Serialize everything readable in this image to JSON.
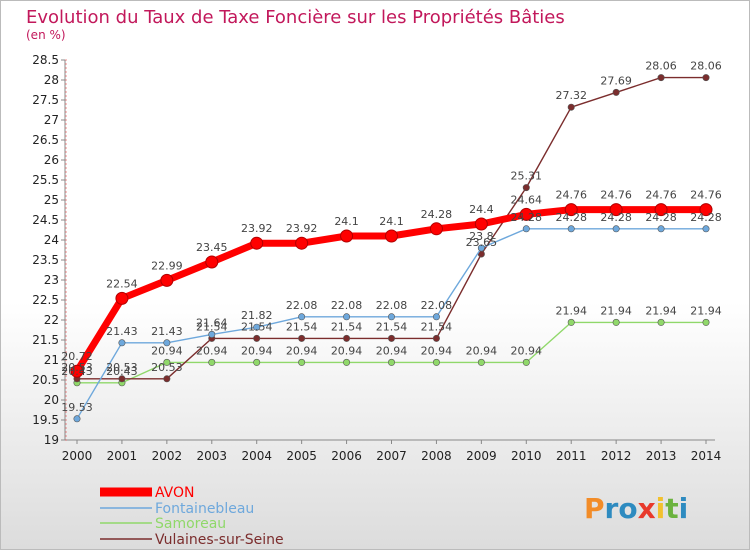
{
  "chart_data": {
    "type": "line",
    "title": "Evolution du Taux de Taxe Foncière sur les Propriétés Bâties",
    "ylabel": "(en %)",
    "xlabel": "",
    "ylim": [
      19,
      28.5
    ],
    "yticks": [
      "19",
      "19.5",
      "20",
      "20.5",
      "21",
      "21.5",
      "22",
      "22.5",
      "23",
      "23.5",
      "24",
      "24.5",
      "25",
      "25.5",
      "26",
      "26.5",
      "27",
      "27.5",
      "28",
      "28.5"
    ],
    "categories": [
      "2000",
      "2001",
      "2002",
      "2003",
      "2004",
      "2005",
      "2006",
      "2007",
      "2008",
      "2009",
      "2010",
      "2011",
      "2012",
      "2013",
      "2014"
    ],
    "series": [
      {
        "name": "AVON",
        "color": "#FF0000",
        "values": [
          20.72,
          22.54,
          22.99,
          23.45,
          23.92,
          23.92,
          24.1,
          24.1,
          24.28,
          24.4,
          24.64,
          24.76,
          24.76,
          24.76,
          24.76
        ],
        "labels": [
          "20.72",
          "22.54",
          "22.99",
          "23.45",
          "23.92",
          "23.92",
          "24.1",
          "24.1",
          "24.28",
          "24.4",
          "24.64",
          "24.76",
          "24.76",
          "24.76",
          "24.76"
        ]
      },
      {
        "name": "Fontainebleau",
        "color": "#6EA8DC",
        "values": [
          19.53,
          21.43,
          21.43,
          21.64,
          21.82,
          22.08,
          22.08,
          22.08,
          22.08,
          23.8,
          24.28,
          24.28,
          24.28,
          24.28,
          24.28
        ],
        "labels": [
          "19.53",
          "21.43",
          "21.43",
          "21.64",
          "21.82",
          "22.08",
          "22.08",
          "22.08",
          "22.08",
          "23.8",
          "24.28",
          "24.28",
          "24.28",
          "24.28",
          "24.28"
        ]
      },
      {
        "name": "Samoreau",
        "color": "#90D86A",
        "values": [
          20.43,
          20.43,
          20.94,
          20.94,
          20.94,
          20.94,
          20.94,
          20.94,
          20.94,
          20.94,
          20.94,
          21.94,
          21.94,
          21.94,
          21.94
        ],
        "labels": [
          "20.43",
          "20.43",
          "20.94",
          "20.94",
          "20.94",
          "20.94",
          "20.94",
          "20.94",
          "20.94",
          "20.94",
          "20.94",
          "21.94",
          "21.94",
          "21.94",
          "21.94"
        ]
      },
      {
        "name": "Vulaines-sur-Seine",
        "color": "#7B2D2D",
        "values": [
          20.53,
          20.53,
          20.53,
          21.54,
          21.54,
          21.54,
          21.54,
          21.54,
          21.54,
          23.65,
          25.31,
          27.32,
          27.69,
          28.06,
          28.06
        ],
        "labels": [
          "20.53",
          "20.53",
          "20.53",
          "21.54",
          "21.54",
          "21.54",
          "21.54",
          "21.54",
          "21.54",
          "23.65",
          "25.31",
          "27.32",
          "27.69",
          "28.06",
          "28.06"
        ]
      }
    ],
    "legend": {
      "position": "bottom-left"
    },
    "grid": false
  },
  "brand": {
    "text": "Proxiti",
    "letters": [
      "P",
      "r",
      "o",
      "x",
      "i",
      "t",
      "i"
    ],
    "colors": [
      "#F28C28",
      "#2E8BC0",
      "#2E8BC0",
      "#E8392B",
      "#F2C12E",
      "#6CB33F",
      "#2E8BC0"
    ]
  }
}
